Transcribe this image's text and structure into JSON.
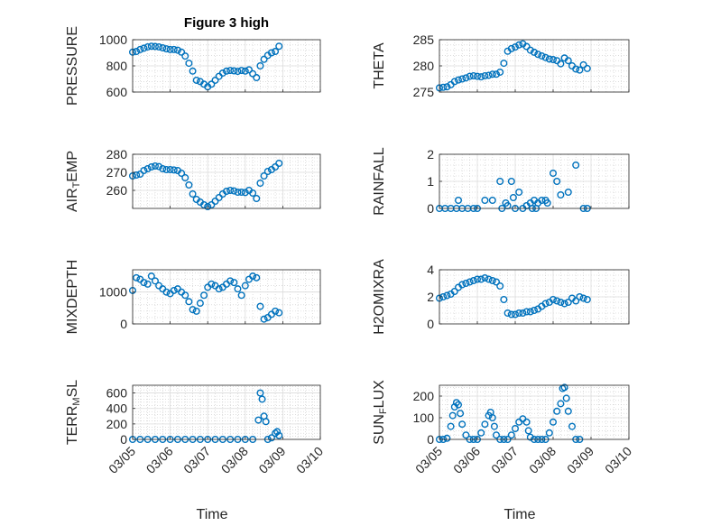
{
  "figure": {
    "title": "Figure 3 high",
    "marker_color": "#0072BD",
    "x_ticks": [
      "03/05",
      "03/06",
      "03/07",
      "03/08",
      "03/09",
      "03/10"
    ],
    "x_label": "Time"
  },
  "chart_data": [
    {
      "type": "scatter",
      "ylabel": "PRESSURE",
      "xlim": [
        "03/05",
        "03/10"
      ],
      "ylim": [
        600,
        1000
      ],
      "yticks": [
        600,
        800,
        1000
      ],
      "grid": true,
      "x": [
        0,
        0.1,
        0.2,
        0.3,
        0.4,
        0.5,
        0.6,
        0.7,
        0.8,
        0.9,
        1.0,
        1.1,
        1.2,
        1.3,
        1.4,
        1.5,
        1.6,
        1.7,
        1.8,
        1.9,
        2.0,
        2.1,
        2.2,
        2.3,
        2.4,
        2.5,
        2.6,
        2.7,
        2.8,
        2.9,
        3.0,
        3.1,
        3.2,
        3.3,
        3.4,
        3.5,
        3.6,
        3.7,
        3.8,
        3.9
      ],
      "y": [
        905,
        910,
        925,
        935,
        945,
        950,
        948,
        945,
        938,
        930,
        925,
        925,
        920,
        905,
        875,
        820,
        760,
        690,
        680,
        660,
        640,
        660,
        690,
        720,
        745,
        760,
        765,
        762,
        758,
        765,
        760,
        770,
        740,
        710,
        800,
        850,
        880,
        900,
        910,
        950
      ]
    },
    {
      "type": "scatter",
      "ylabel": "THETA",
      "xlim": [
        "03/05",
        "03/10"
      ],
      "ylim": [
        275,
        285
      ],
      "yticks": [
        275,
        280,
        285
      ],
      "grid": true,
      "x": [
        0,
        0.1,
        0.2,
        0.3,
        0.4,
        0.5,
        0.6,
        0.7,
        0.8,
        0.9,
        1.0,
        1.1,
        1.2,
        1.3,
        1.4,
        1.5,
        1.6,
        1.7,
        1.8,
        1.9,
        2.0,
        2.1,
        2.2,
        2.3,
        2.4,
        2.5,
        2.6,
        2.7,
        2.8,
        2.9,
        3.0,
        3.1,
        3.2,
        3.3,
        3.4,
        3.5,
        3.6,
        3.7,
        3.8,
        3.9
      ],
      "y": [
        275.8,
        275.9,
        276.0,
        276.4,
        277.0,
        277.3,
        277.5,
        277.7,
        278.0,
        278.1,
        278.0,
        277.9,
        278.1,
        278.2,
        278.4,
        278.4,
        278.8,
        280.5,
        282.8,
        283.3,
        283.6,
        284.0,
        284.2,
        283.7,
        283.0,
        282.6,
        282.2,
        281.9,
        281.6,
        281.3,
        281.2,
        281.0,
        280.4,
        281.5,
        281.0,
        280.0,
        279.4,
        279.2,
        280.2,
        279.5
      ]
    },
    {
      "type": "scatter",
      "ylabel": "AIR_TEMP",
      "xlim": [
        "03/05",
        "03/10"
      ],
      "ylim": [
        250,
        280
      ],
      "yticks": [
        260,
        270,
        280
      ],
      "grid": true,
      "x": [
        0,
        0.1,
        0.2,
        0.3,
        0.4,
        0.5,
        0.6,
        0.7,
        0.8,
        0.9,
        1.0,
        1.1,
        1.2,
        1.3,
        1.4,
        1.5,
        1.6,
        1.7,
        1.8,
        1.9,
        2.0,
        2.1,
        2.2,
        2.3,
        2.4,
        2.5,
        2.6,
        2.7,
        2.8,
        2.9,
        3.0,
        3.1,
        3.2,
        3.3,
        3.4,
        3.5,
        3.6,
        3.7,
        3.8,
        3.9
      ],
      "y": [
        268,
        268.5,
        269,
        271,
        272,
        273,
        273.5,
        273.2,
        272,
        271.5,
        271.5,
        271.3,
        271,
        269.5,
        267,
        263,
        258,
        255,
        253.5,
        252,
        251,
        252,
        254,
        256,
        258,
        259.5,
        260,
        259.7,
        259,
        259,
        258.8,
        260,
        258.5,
        255.5,
        264,
        268,
        270.5,
        271.5,
        273,
        275
      ]
    },
    {
      "type": "scatter",
      "ylabel": "RAINFALL",
      "xlim": [
        "03/05",
        "03/10"
      ],
      "ylim": [
        0,
        2
      ],
      "yticks": [
        0,
        1,
        2
      ],
      "grid": true,
      "x": [
        0,
        0.15,
        0.3,
        0.45,
        0.5,
        0.6,
        0.75,
        0.9,
        1.0,
        1.2,
        1.4,
        1.6,
        1.65,
        1.75,
        1.8,
        1.9,
        1.95,
        2.0,
        2.1,
        2.2,
        2.3,
        2.4,
        2.45,
        2.5,
        2.55,
        2.6,
        2.7,
        2.8,
        2.85,
        3.0,
        3.1,
        3.2,
        3.4,
        3.6,
        3.8,
        3.9
      ],
      "y": [
        0,
        0,
        0,
        0,
        0.3,
        0,
        0,
        0,
        0,
        0.3,
        0.3,
        1.0,
        0,
        0.2,
        0.1,
        1.0,
        0.4,
        0,
        0.6,
        0,
        0.1,
        0.2,
        0,
        0.3,
        0,
        0.2,
        0.3,
        0.3,
        0.2,
        1.3,
        1.0,
        0.5,
        0.6,
        1.6,
        0,
        0
      ]
    },
    {
      "type": "scatter",
      "ylabel": "MIXDEPTH",
      "xlim": [
        "03/05",
        "03/10"
      ],
      "ylim": [
        0,
        1700
      ],
      "yticks": [
        0,
        1000
      ],
      "grid": true,
      "x": [
        0,
        0.1,
        0.2,
        0.3,
        0.4,
        0.5,
        0.6,
        0.7,
        0.8,
        0.9,
        1.0,
        1.1,
        1.2,
        1.3,
        1.4,
        1.5,
        1.6,
        1.7,
        1.8,
        1.9,
        2.0,
        2.1,
        2.2,
        2.3,
        2.4,
        2.5,
        2.6,
        2.7,
        2.8,
        2.9,
        3.0,
        3.1,
        3.2,
        3.3,
        3.4,
        3.5,
        3.6,
        3.7,
        3.8,
        3.9
      ],
      "y": [
        1050,
        1450,
        1400,
        1300,
        1250,
        1500,
        1350,
        1200,
        1100,
        1000,
        950,
        1050,
        1100,
        1000,
        900,
        700,
        450,
        400,
        650,
        900,
        1150,
        1250,
        1200,
        1100,
        1150,
        1250,
        1350,
        1300,
        1100,
        900,
        1200,
        1400,
        1500,
        1450,
        550,
        150,
        200,
        300,
        400,
        350
      ]
    },
    {
      "type": "scatter",
      "ylabel": "H2OMIXRA",
      "xlim": [
        "03/05",
        "03/10"
      ],
      "ylim": [
        0,
        4
      ],
      "yticks": [
        0,
        2,
        4
      ],
      "grid": true,
      "x": [
        0,
        0.1,
        0.2,
        0.3,
        0.4,
        0.5,
        0.6,
        0.7,
        0.8,
        0.9,
        1.0,
        1.1,
        1.2,
        1.3,
        1.4,
        1.5,
        1.6,
        1.7,
        1.8,
        1.9,
        2.0,
        2.1,
        2.2,
        2.3,
        2.4,
        2.5,
        2.6,
        2.7,
        2.8,
        2.9,
        3.0,
        3.1,
        3.2,
        3.3,
        3.4,
        3.5,
        3.6,
        3.7,
        3.8,
        3.9
      ],
      "y": [
        1.9,
        2.0,
        2.1,
        2.2,
        2.4,
        2.7,
        2.9,
        3.0,
        3.1,
        3.2,
        3.3,
        3.3,
        3.4,
        3.3,
        3.2,
        3.1,
        2.8,
        1.8,
        0.8,
        0.7,
        0.7,
        0.8,
        0.8,
        0.9,
        0.9,
        1.0,
        1.1,
        1.3,
        1.5,
        1.6,
        1.8,
        1.7,
        1.6,
        1.5,
        1.6,
        1.9,
        1.7,
        2.0,
        1.9,
        1.8
      ]
    },
    {
      "type": "scatter",
      "ylabel": "TERR_MSL",
      "xlim": [
        "03/05",
        "03/10"
      ],
      "ylim": [
        0,
        700
      ],
      "yticks": [
        0,
        200,
        400,
        600
      ],
      "grid": true,
      "x": [
        0,
        0.2,
        0.4,
        0.6,
        0.8,
        1.0,
        1.2,
        1.4,
        1.6,
        1.8,
        2.0,
        2.2,
        2.4,
        2.6,
        2.8,
        3.0,
        3.2,
        3.35,
        3.4,
        3.45,
        3.5,
        3.55,
        3.6,
        3.7,
        3.8,
        3.85,
        3.9
      ],
      "y": [
        0,
        0,
        0,
        0,
        0,
        0,
        0,
        0,
        0,
        0,
        0,
        0,
        0,
        0,
        0,
        0,
        0,
        250,
        600,
        520,
        300,
        230,
        0,
        20,
        80,
        100,
        50
      ]
    },
    {
      "type": "scatter",
      "ylabel": "SUN_FLUX",
      "xlim": [
        "03/05",
        "03/10"
      ],
      "ylim": [
        0,
        250
      ],
      "yticks": [
        0,
        100,
        200
      ],
      "grid": true,
      "x": [
        0,
        0.1,
        0.2,
        0.3,
        0.35,
        0.4,
        0.45,
        0.5,
        0.55,
        0.6,
        0.7,
        0.8,
        0.9,
        1.0,
        1.1,
        1.2,
        1.3,
        1.35,
        1.4,
        1.45,
        1.5,
        1.6,
        1.7,
        1.8,
        1.9,
        2.0,
        2.1,
        2.2,
        2.3,
        2.35,
        2.4,
        2.5,
        2.6,
        2.7,
        2.8,
        2.9,
        3.0,
        3.1,
        3.2,
        3.25,
        3.3,
        3.35,
        3.4,
        3.5,
        3.6,
        3.7
      ],
      "y": [
        0,
        0,
        5,
        60,
        110,
        150,
        170,
        160,
        120,
        70,
        20,
        0,
        0,
        0,
        30,
        70,
        110,
        125,
        100,
        60,
        20,
        0,
        0,
        0,
        20,
        50,
        80,
        95,
        80,
        40,
        10,
        0,
        0,
        0,
        0,
        30,
        80,
        130,
        165,
        235,
        240,
        190,
        130,
        60,
        0,
        0
      ]
    }
  ]
}
